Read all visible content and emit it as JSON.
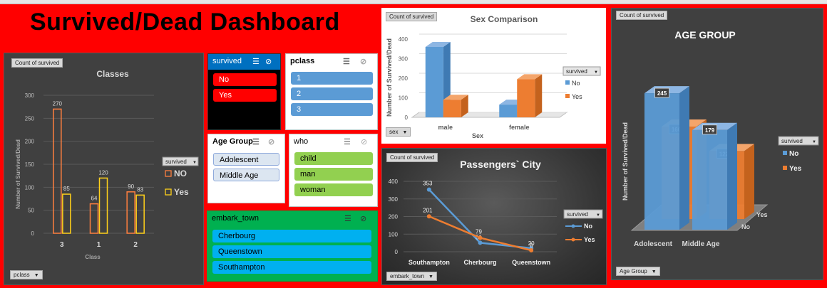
{
  "dashboard_title": "Survived/Dead Dashboard",
  "colors": {
    "no": "#5b9bd5",
    "yes": "#ed7d31",
    "classes_no": "#ff7f3f",
    "classes_yes": "#ffd11a"
  },
  "classes_chart": {
    "pivot_label": "Count of survived",
    "filter_label": "pclass",
    "legend_title": "survived",
    "chart_data": {
      "type": "bar",
      "title": "Classes",
      "xlabel": "Class",
      "ylabel": "Number of Survived/Dead",
      "categories": [
        "3",
        "1",
        "2"
      ],
      "ylim": [
        0,
        300
      ],
      "yticks": [
        "0",
        "50",
        "100",
        "150",
        "200",
        "250",
        "300"
      ],
      "series": [
        {
          "name": "NO",
          "values": [
            270,
            64,
            90
          ]
        },
        {
          "name": "Yes",
          "values": [
            85,
            120,
            83
          ]
        }
      ]
    }
  },
  "sex_chart": {
    "pivot_label": "Count of survived",
    "filter_label": "sex",
    "legend_title": "survived",
    "chart_data": {
      "type": "bar",
      "title": "Sex Comparison",
      "xlabel": "Sex",
      "ylabel": "Number of Survived/Dead",
      "categories": [
        "male",
        "female"
      ],
      "ylim": [
        0,
        400
      ],
      "yticks": [
        "0",
        "100",
        "200",
        "300",
        "400"
      ],
      "series": [
        {
          "name": "No",
          "values": [
            360,
            65
          ]
        },
        {
          "name": "Yes",
          "values": [
            90,
            195
          ]
        }
      ]
    }
  },
  "city_chart": {
    "pivot_label": "Count of survived",
    "filter_label": "embark_town",
    "legend_title": "survived",
    "chart_data": {
      "type": "line",
      "title": "Passengers` City",
      "categories": [
        "Southampton",
        "Cherbourg",
        "Queenstown"
      ],
      "ylim": [
        0,
        400
      ],
      "yticks": [
        "0",
        "100",
        "200",
        "300",
        "400"
      ],
      "series": [
        {
          "name": "No",
          "values": [
            353,
            51,
            20
          ]
        },
        {
          "name": "Yes",
          "values": [
            201,
            79,
            8
          ]
        }
      ]
    }
  },
  "age_chart": {
    "pivot_label": "Count of survived",
    "filter_label": "Age Group",
    "legend_title": "survived",
    "chart_data": {
      "type": "bar",
      "title": "AGE GROUP",
      "ylabel": "Number of Survived/Dead",
      "categories": [
        "Adolescent",
        "Middle Age"
      ],
      "depth_labels": [
        "Yes",
        "No"
      ],
      "ylim": [
        0,
        300
      ],
      "series": [
        {
          "name": "No",
          "values": [
            245,
            179
          ]
        },
        {
          "name": "Yes",
          "values": [
            166,
            122
          ]
        }
      ]
    }
  },
  "slicers": {
    "survived": {
      "title": "survived",
      "items": [
        "No",
        "Yes"
      ]
    },
    "pclass": {
      "title": "pclass",
      "items": [
        "1",
        "2",
        "3"
      ]
    },
    "age_group": {
      "title": "Age Group",
      "items": [
        "Adolescent",
        "Middle Age"
      ]
    },
    "who": {
      "title": "who",
      "items": [
        "child",
        "man",
        "woman"
      ]
    },
    "embark_town": {
      "title": "embark_town",
      "items": [
        "Cherbourg",
        "Queenstown",
        "Southampton"
      ]
    }
  }
}
